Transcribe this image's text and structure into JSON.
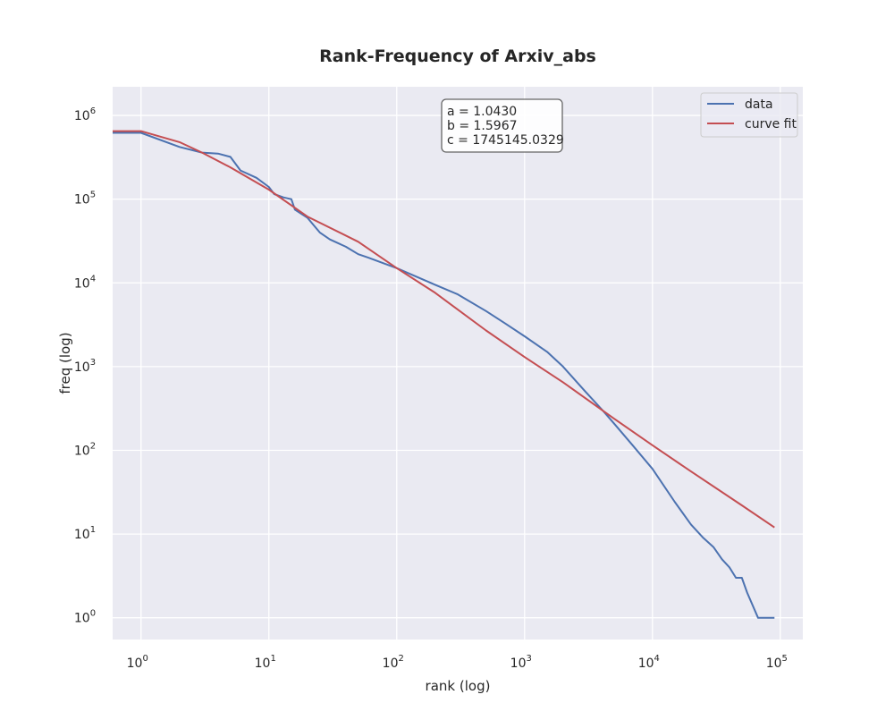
{
  "chart_data": {
    "type": "line",
    "title": "Rank-Frequency of Arxiv_abs",
    "xlabel": "rank (log)",
    "ylabel": "freq (log)",
    "xscale": "log",
    "yscale": "log",
    "xlim": [
      0.6,
      150000
    ],
    "ylim": [
      0.55,
      2200000
    ],
    "x_ticks": [
      {
        "base": "10",
        "exp": "0",
        "value": 1
      },
      {
        "base": "10",
        "exp": "1",
        "value": 10
      },
      {
        "base": "10",
        "exp": "2",
        "value": 100
      },
      {
        "base": "10",
        "exp": "3",
        "value": 1000
      },
      {
        "base": "10",
        "exp": "4",
        "value": 10000
      },
      {
        "base": "10",
        "exp": "5",
        "value": 100000
      }
    ],
    "y_ticks": [
      {
        "base": "10",
        "exp": "0",
        "value": 1
      },
      {
        "base": "10",
        "exp": "1",
        "value": 10
      },
      {
        "base": "10",
        "exp": "2",
        "value": 100
      },
      {
        "base": "10",
        "exp": "3",
        "value": 1000
      },
      {
        "base": "10",
        "exp": "4",
        "value": 10000
      },
      {
        "base": "10",
        "exp": "5",
        "value": 100000
      },
      {
        "base": "10",
        "exp": "6",
        "value": 1000000
      }
    ],
    "grid": true,
    "legend_position": "top-right",
    "annotation": [
      "a = 1.0430",
      "b = 1.5967",
      "c = 1745145.0329"
    ],
    "series": [
      {
        "name": "data",
        "color": "#4c72b0",
        "x": [
          0.6,
          1,
          2,
          3,
          4,
          5,
          6,
          8,
          10,
          11,
          13,
          15,
          16,
          20,
          25,
          30,
          40,
          50,
          60,
          80,
          100,
          200,
          300,
          500,
          700,
          1000,
          1500,
          2000,
          3000,
          4000,
          5000,
          7000,
          10000,
          15000,
          20000,
          25000,
          30000,
          35000,
          40000,
          45000,
          50000,
          55000,
          67000,
          90000
        ],
        "y": [
          620000,
          620000,
          420000,
          360000,
          350000,
          320000,
          220000,
          180000,
          140000,
          115000,
          105000,
          100000,
          75000,
          60000,
          40000,
          33000,
          27000,
          22000,
          20000,
          17000,
          15000,
          9500,
          7300,
          4600,
          3300,
          2300,
          1500,
          1000,
          500,
          310,
          210,
          115,
          60,
          24,
          13,
          9,
          7,
          5,
          4,
          3,
          3,
          2,
          1,
          1
        ]
      },
      {
        "name": "curve fit",
        "color": "#c44e52",
        "x": [
          0.6,
          1,
          2,
          3,
          5,
          10,
          20,
          50,
          100,
          200,
          500,
          1000,
          2000,
          5000,
          10000,
          20000,
          50000,
          90000
        ],
        "y": [
          650000,
          650000,
          480000,
          360000,
          240000,
          130000,
          62000,
          31000,
          15000,
          7600,
          2700,
          1300,
          650,
          240,
          115,
          56,
          22,
          12
        ]
      }
    ]
  }
}
